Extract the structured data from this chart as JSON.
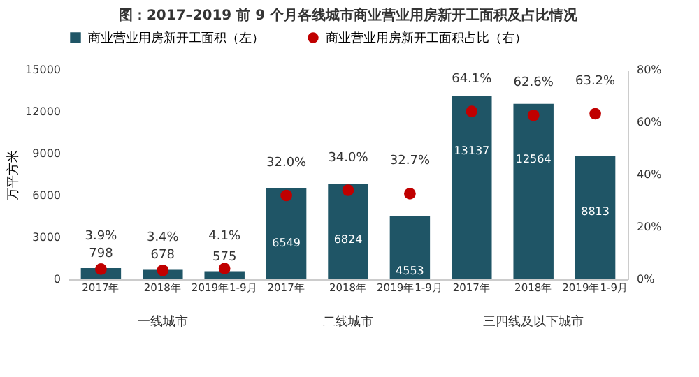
{
  "chart_data": {
    "type": "bar",
    "title": "图：2017–2019 前 9 个月各线城市商业营业用房新开工面积及占比情况",
    "ylabel": "万平方米",
    "categories": [
      "2017年",
      "2018年",
      "2019年1-9月",
      "2017年",
      "2018年",
      "2019年1-9月",
      "2017年",
      "2018年",
      "2019年1-9月"
    ],
    "series": [
      {
        "name": "商业营业用房新开工面积（左）",
        "type": "bar",
        "color": "#1f5566",
        "values": [
          798,
          678,
          575,
          6549,
          6824,
          4553,
          13137,
          12564,
          8813
        ],
        "value_labels": [
          "798",
          "678",
          "575",
          "6549",
          "6824",
          "4553",
          "13137",
          "12564",
          "8813"
        ]
      },
      {
        "name": "商业营业用房新开工面积占比（右）",
        "type": "scatter",
        "axis": "y2",
        "color": "#c00000",
        "values": [
          3.9,
          3.4,
          4.1,
          32.0,
          34.0,
          32.7,
          64.1,
          62.6,
          63.2
        ],
        "value_labels": [
          "3.9%",
          "3.4%",
          "4.1%",
          "32.0%",
          "34.0%",
          "32.7%",
          "64.1%",
          "62.6%",
          "63.2%"
        ]
      }
    ],
    "ylim": [
      0,
      15000
    ],
    "yticks": [
      0,
      3000,
      6000,
      9000,
      12000,
      15000
    ],
    "y2lim": [
      0,
      80
    ],
    "y2ticks": [
      {
        "value": 0,
        "label": "0%"
      },
      {
        "value": 20,
        "label": "20%"
      },
      {
        "value": 40,
        "label": "40%"
      },
      {
        "value": 60,
        "label": "60%"
      },
      {
        "value": 80,
        "label": "80%"
      }
    ],
    "marker": "circle",
    "legend": "top",
    "grid": false,
    "annotations": [
      "一线城市",
      "二线城市",
      "三四线及以下城市"
    ]
  }
}
